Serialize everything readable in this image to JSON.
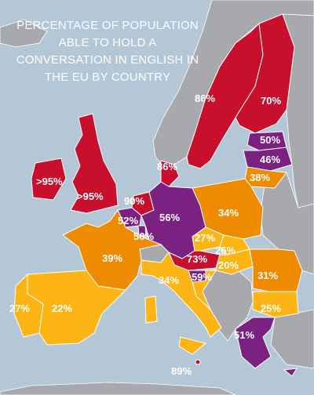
{
  "title": "PERCENTAGE OF POPULATION ABLE TO HOLD A CONVERSATION IN ENGLISH IN THE EU BY COUNTRY",
  "colors": {
    "sea": "#b4c7d6",
    "non_eu": "#a7a9ac",
    "band_highest": "#c8102e",
    "band_high": "#7a2182",
    "band_mid": "#ee8b00",
    "band_low": "#fdb515"
  },
  "labels": {
    "norway": "86%",
    "finland": "70%",
    "estonia": "50%",
    "latvia": "46%",
    "lithuania": "38%",
    "denmark": "86%",
    "ireland": ">95%",
    "uk": ">95%",
    "netherlands": "90%",
    "belgium": "52%",
    "luxembourg": "56%",
    "germany": "56%",
    "poland": "34%",
    "czech": "27%",
    "slovakia": "26%",
    "austria": "73%",
    "hungary": "20%",
    "slovenia": "59%",
    "france": "39%",
    "italy": "34%",
    "romania": "31%",
    "bulgaria": "25%",
    "greece": "51%",
    "portugal": "27%",
    "spain": "22%",
    "malta": "89%"
  }
}
